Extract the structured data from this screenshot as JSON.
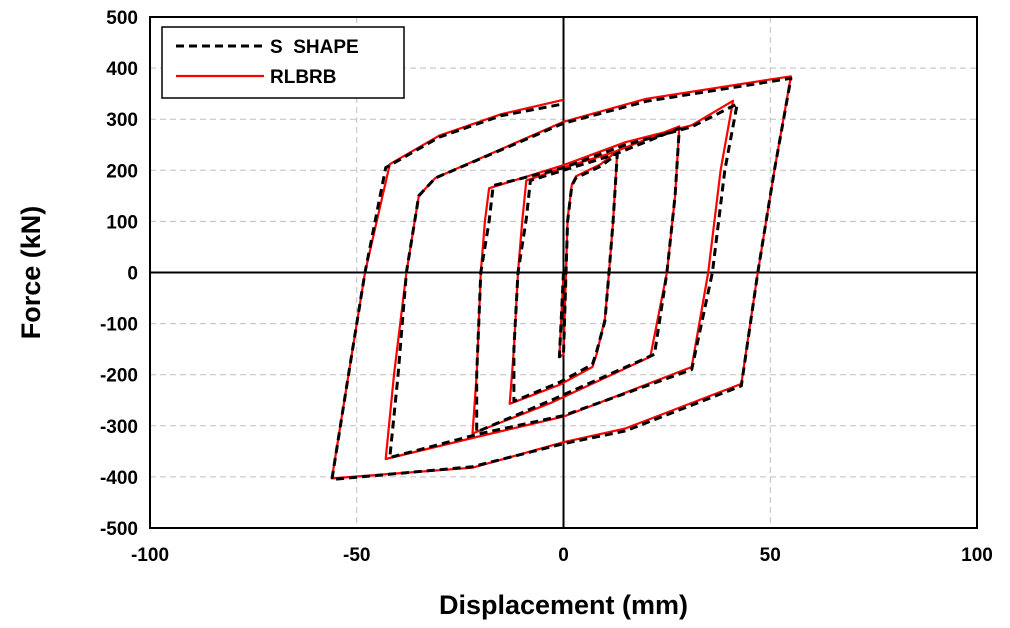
{
  "chart_data": {
    "type": "line",
    "xlabel": "Displacement (mm)",
    "ylabel": "Force (kN)",
    "xlim": [
      -100,
      100
    ],
    "ylim": [
      -500,
      500
    ],
    "x_ticks": [
      -100,
      -50,
      0,
      50,
      100
    ],
    "y_ticks": [
      -500,
      -400,
      -300,
      -200,
      -100,
      0,
      100,
      200,
      300,
      400,
      500
    ],
    "x_tick_labels": [
      "-100",
      "-50",
      "0",
      "50",
      "100"
    ],
    "y_tick_labels": [
      "-500",
      "-400",
      "-300",
      "-200",
      "-100",
      "0",
      "100",
      "200",
      "300",
      "400",
      "500"
    ],
    "grid": "dashed",
    "legend_position": "top-left",
    "series": [
      {
        "name": "S  SHAPE",
        "color": "#000000",
        "style": "dashed",
        "points": [
          [
            0,
            0
          ],
          [
            -1,
            -165
          ],
          [
            0,
            -160
          ],
          [
            1,
            100
          ],
          [
            2,
            170
          ],
          [
            3,
            185
          ],
          [
            9,
            208
          ],
          [
            13,
            232
          ],
          [
            12,
            100
          ],
          [
            11,
            0
          ],
          [
            10,
            -95
          ],
          [
            8,
            -155
          ],
          [
            7,
            -180
          ],
          [
            -1,
            -215
          ],
          [
            -12,
            -252
          ],
          [
            -12,
            -150
          ],
          [
            -11,
            0
          ],
          [
            -9,
            105
          ],
          [
            -8,
            180
          ],
          [
            0,
            200
          ],
          [
            12,
            230
          ],
          [
            28,
            282
          ],
          [
            27,
            150
          ],
          [
            25,
            0
          ],
          [
            22,
            -160
          ],
          [
            -3,
            -250
          ],
          [
            -21,
            -312
          ],
          [
            -21,
            -200
          ],
          [
            -20,
            0
          ],
          [
            -18,
            100
          ],
          [
            -17,
            170
          ],
          [
            0,
            205
          ],
          [
            15,
            250
          ],
          [
            31,
            285
          ],
          [
            42,
            330
          ],
          [
            39,
            200
          ],
          [
            36,
            0
          ],
          [
            31,
            -190
          ],
          [
            0,
            -280
          ],
          [
            -20,
            -315
          ],
          [
            -42,
            -362
          ],
          [
            -40,
            -200
          ],
          [
            -38,
            0
          ],
          [
            -35,
            150
          ],
          [
            -31,
            185
          ],
          [
            0,
            292
          ],
          [
            20,
            335
          ],
          [
            55,
            380
          ],
          [
            51,
            200
          ],
          [
            47,
            0
          ],
          [
            43,
            -222
          ],
          [
            15,
            -310
          ],
          [
            0,
            -335
          ],
          [
            -22,
            -380
          ],
          [
            -56,
            -405
          ],
          [
            -52,
            -200
          ],
          [
            -48,
            0
          ],
          [
            -43,
            205
          ],
          [
            -30,
            265
          ],
          [
            -15,
            307
          ],
          [
            0,
            330
          ]
        ]
      },
      {
        "name": "RLBRB",
        "color": "#ff0000",
        "style": "solid",
        "points": [
          [
            0,
            0
          ],
          [
            -1,
            -165
          ],
          [
            0,
            -160
          ],
          [
            1,
            105
          ],
          [
            2,
            172
          ],
          [
            3,
            188
          ],
          [
            9,
            212
          ],
          [
            13,
            238
          ],
          [
            12,
            100
          ],
          [
            11,
            0
          ],
          [
            10,
            -90
          ],
          [
            8,
            -160
          ],
          [
            7,
            -185
          ],
          [
            -1,
            -220
          ],
          [
            -13,
            -257
          ],
          [
            -12,
            -150
          ],
          [
            -11,
            0
          ],
          [
            -10,
            100
          ],
          [
            -9,
            180
          ],
          [
            0,
            205
          ],
          [
            12,
            235
          ],
          [
            28,
            286
          ],
          [
            27,
            150
          ],
          [
            25,
            0
          ],
          [
            21,
            -165
          ],
          [
            -3,
            -255
          ],
          [
            -22,
            -315
          ],
          [
            -21,
            -200
          ],
          [
            -20,
            0
          ],
          [
            -19,
            100
          ],
          [
            -18,
            165
          ],
          [
            0,
            210
          ],
          [
            15,
            255
          ],
          [
            31,
            288
          ],
          [
            41,
            336
          ],
          [
            38,
            200
          ],
          [
            35,
            0
          ],
          [
            31,
            -185
          ],
          [
            0,
            -282
          ],
          [
            -20,
            -320
          ],
          [
            -43,
            -365
          ],
          [
            -41,
            -200
          ],
          [
            -38,
            0
          ],
          [
            -35,
            150
          ],
          [
            -31,
            185
          ],
          [
            0,
            295
          ],
          [
            20,
            340
          ],
          [
            55,
            384
          ],
          [
            51,
            200
          ],
          [
            47,
            0
          ],
          [
            43,
            -218
          ],
          [
            15,
            -305
          ],
          [
            0,
            -332
          ],
          [
            -22,
            -382
          ],
          [
            -56,
            -403
          ],
          [
            -52,
            -200
          ],
          [
            -48,
            0
          ],
          [
            -42,
            212
          ],
          [
            -30,
            268
          ],
          [
            -15,
            310
          ],
          [
            0,
            338
          ]
        ]
      }
    ]
  }
}
